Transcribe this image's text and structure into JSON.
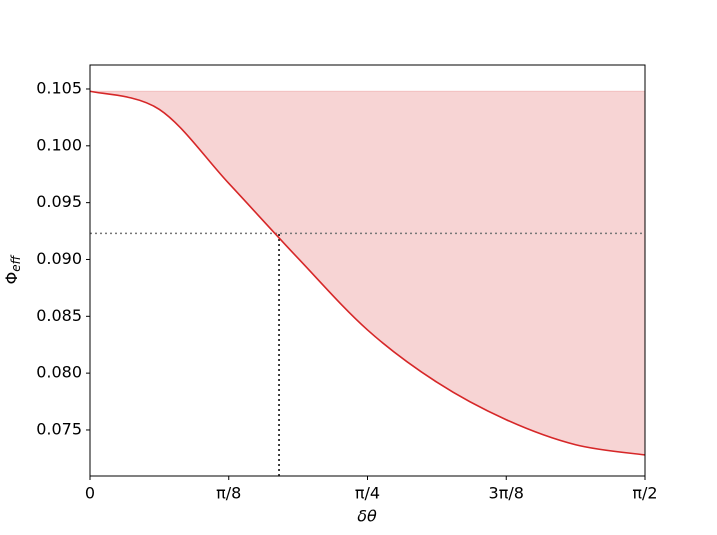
{
  "chart_data": {
    "type": "line",
    "x": [
      0,
      0.19635,
      0.3927,
      0.58905,
      0.7854,
      0.98175,
      1.1781,
      1.37445,
      1.5708
    ],
    "values": [
      0.1048,
      0.1032,
      0.0967,
      0.0901,
      0.0838,
      0.0792,
      0.0759,
      0.0737,
      0.0728
    ],
    "color": "#d62728",
    "fill_upper": 0.1048,
    "fill_color": "rgba(214,39,40,0.2)",
    "marker": {
      "x": 0.535,
      "y": 0.0923
    },
    "x_label": "δθ",
    "y_label": {
      "symbol": "Φ",
      "subscript": "eff"
    },
    "xlim": [
      0,
      1.5708
    ],
    "ylim": [
      0.07095,
      0.10711
    ],
    "xticks": [
      0,
      {
        "value": 0.3927,
        "label": "π/8"
      },
      {
        "value": 0.7854,
        "label": "π/4"
      },
      {
        "value": 1.1781,
        "label": "3π/8"
      },
      {
        "value": 1.5708,
        "label": "π/2"
      }
    ],
    "yticks": [
      0.075,
      {
        "value": 0.08,
        "label": "0.080"
      },
      0.085,
      {
        "value": 0.09,
        "label": "0.090"
      },
      0.095,
      {
        "value": 0.1,
        "label": "0.100"
      },
      0.105
    ],
    "grid": false
  }
}
